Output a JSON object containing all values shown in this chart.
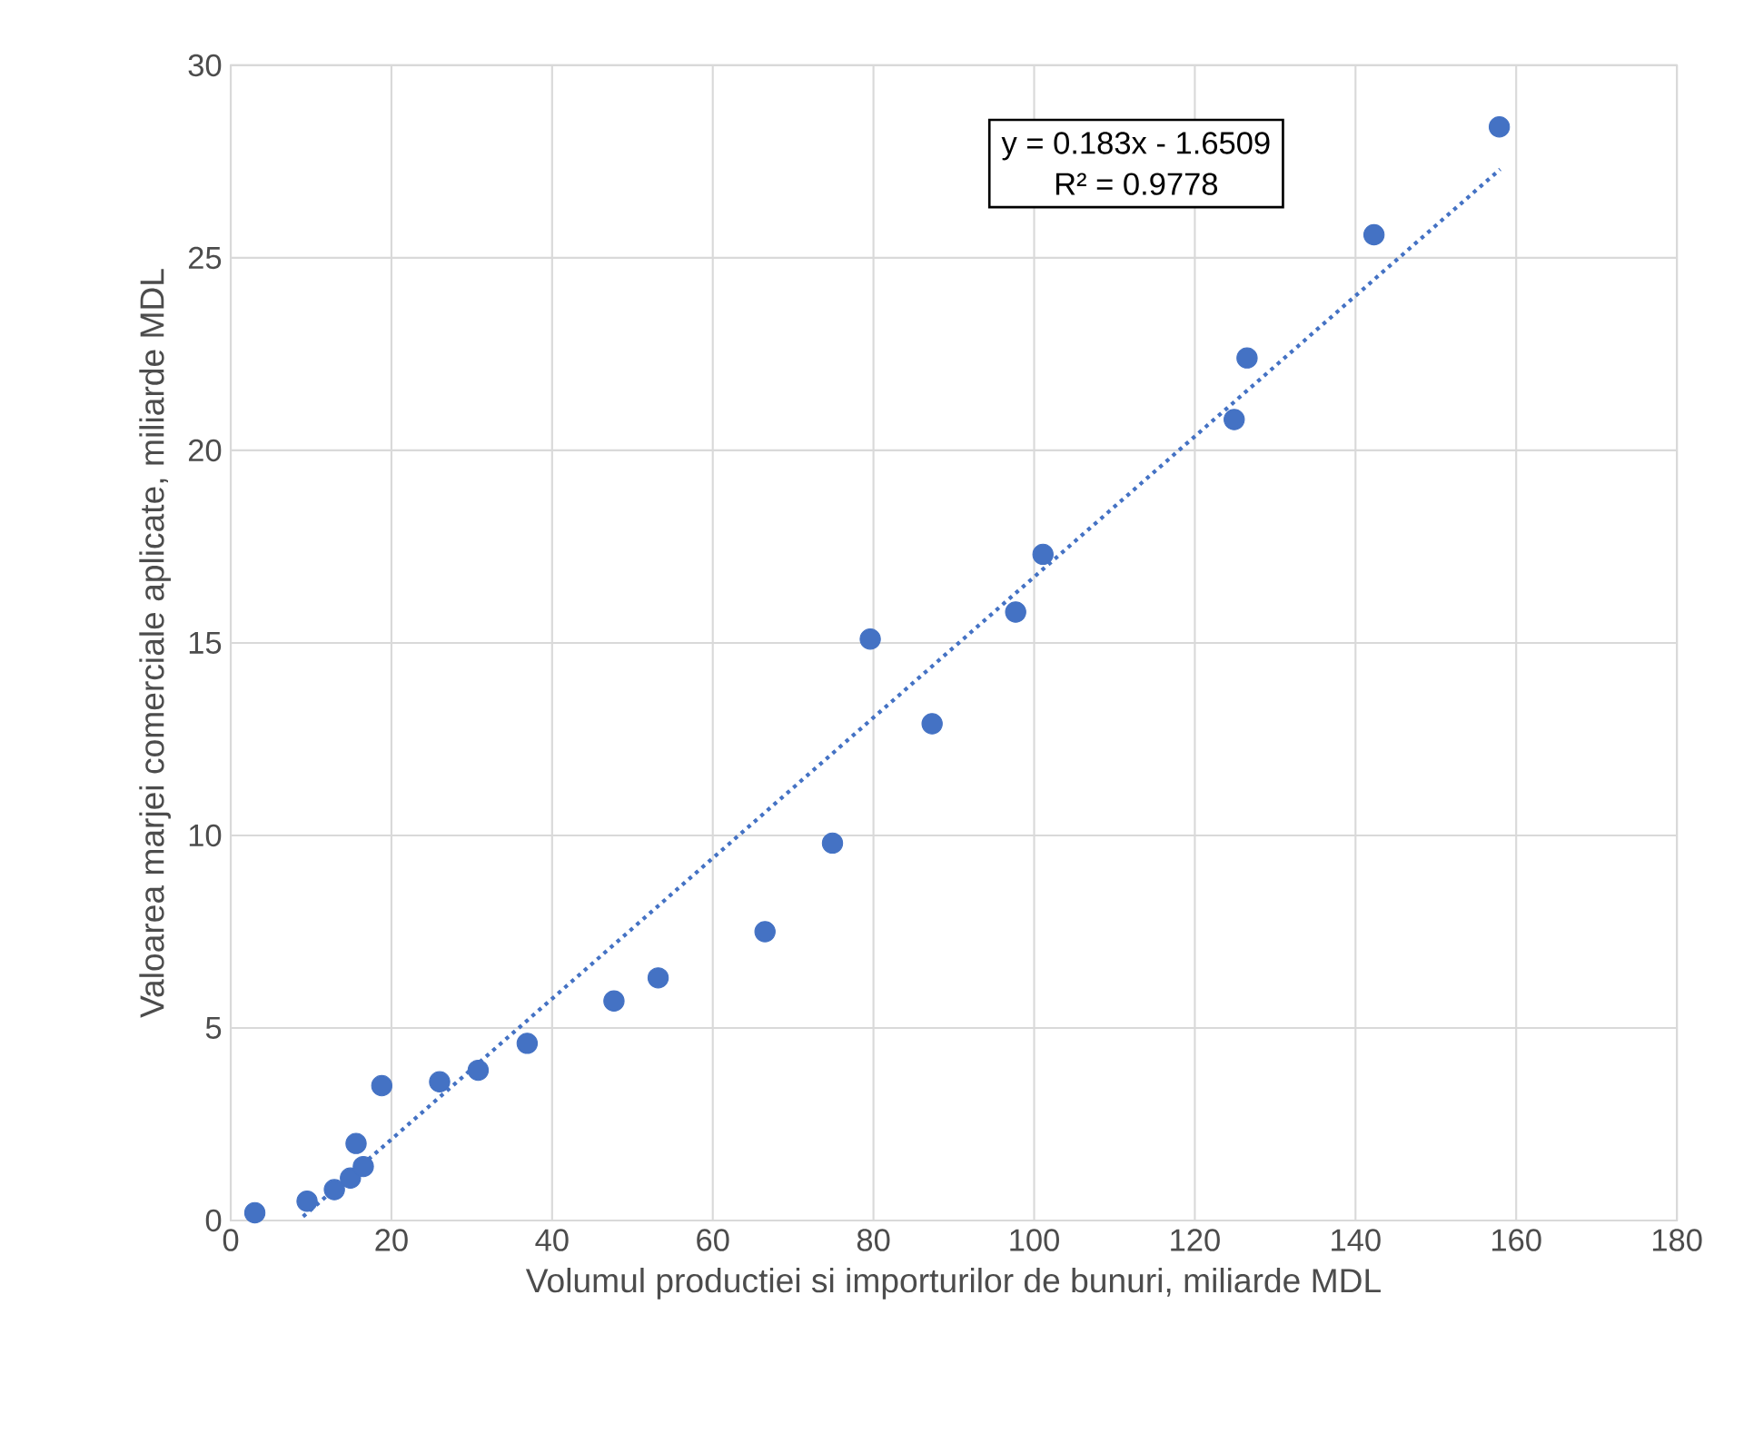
{
  "chart_data": {
    "type": "scatter",
    "xlabel": "Volumul productiei si importurilor de bunuri, miliarde MDL",
    "ylabel": "Valoarea marjei comerciale aplicate, miliarde MDL",
    "xlim": [
      0,
      180
    ],
    "ylim": [
      0,
      30
    ],
    "xticks": [
      0,
      20,
      40,
      60,
      80,
      100,
      120,
      140,
      160,
      180
    ],
    "yticks": [
      0,
      5,
      10,
      15,
      20,
      25,
      30
    ],
    "grid": true,
    "annotations": [
      "y = 0.183x - 1.6509",
      "R² = 0.9778"
    ],
    "series": [
      {
        "color": "#4472c4",
        "marker": "circle",
        "x": [
          3,
          9.5,
          12.9,
          14.9,
          15.6,
          16.5,
          18.8,
          26,
          30.8,
          36.9,
          47.7,
          53.2,
          66.5,
          74.9,
          79.6,
          87.3,
          97.7,
          101.1,
          124.9,
          126.5,
          142.3,
          157.9
        ],
        "values": [
          0.2,
          0.5,
          0.8,
          1.1,
          2,
          1.4,
          3.5,
          3.6,
          3.9,
          4.6,
          5.7,
          6.3,
          7.5,
          9.8,
          15.1,
          12.9,
          15.8,
          17.3,
          20.8,
          22.4,
          25.6,
          28.4
        ]
      },
      {
        "type": "line",
        "color": "#4472c4",
        "line_style": "dotted",
        "marker": "none",
        "x": [
          9,
          158
        ],
        "values": [
          0.1,
          27.3
        ]
      }
    ]
  }
}
